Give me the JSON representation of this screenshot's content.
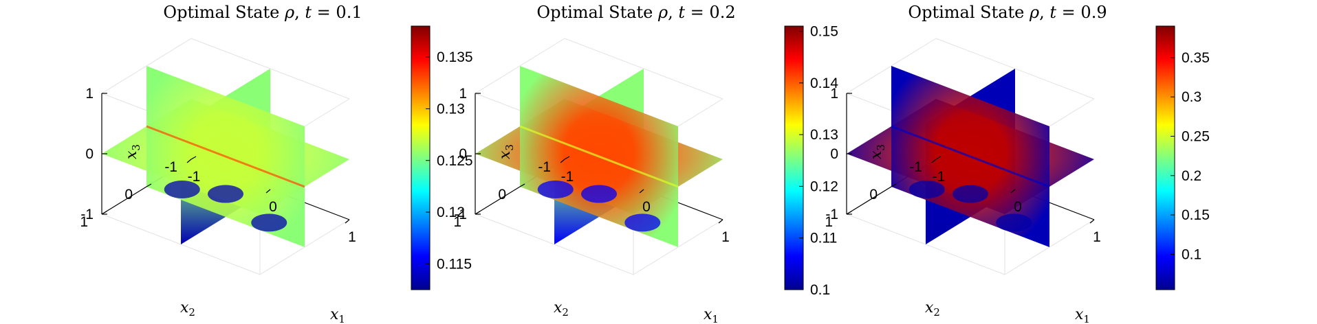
{
  "chart_data": [
    {
      "type": "volumetric-slice",
      "title": "Optimal State ρ, t = 0.1",
      "title_parts": {
        "prefix": "Optimal State ",
        "var": "ρ",
        "sep": ", ",
        "tvar": "t",
        "eq": " = ",
        "tval": "0.1"
      },
      "xlabel": "x1",
      "ylabel": "x2",
      "zlabel": "x3",
      "axis_labels": {
        "x1": {
          "base": "x",
          "sub": "1"
        },
        "x2": {
          "base": "x",
          "sub": "2"
        },
        "x3": {
          "base": "x",
          "sub": "3"
        }
      },
      "x_ticks": [
        "-1",
        "0",
        "1"
      ],
      "y_ticks": [
        "-1",
        "0",
        "1"
      ],
      "z_ticks": [
        "-1",
        "0",
        "1"
      ],
      "colorbar": {
        "min": 0.1125,
        "max": 0.138,
        "ticks": [
          0.115,
          0.12,
          0.125,
          0.13,
          0.135
        ],
        "tick_labels": [
          "0.115",
          "0.12",
          "0.125",
          "0.13",
          "0.135"
        ]
      },
      "pattern": {
        "base": 0.1255,
        "center_value": 0.127,
        "edge_value": 0.133,
        "low_value": 0.1135
      }
    },
    {
      "type": "volumetric-slice",
      "title": "Optimal State ρ, t = 0.2",
      "title_parts": {
        "prefix": "Optimal State ",
        "var": "ρ",
        "sep": ", ",
        "tvar": "t",
        "eq": " = ",
        "tval": "0.2"
      },
      "xlabel": "x1",
      "ylabel": "x2",
      "zlabel": "x3",
      "axis_labels": {
        "x1": {
          "base": "x",
          "sub": "1"
        },
        "x2": {
          "base": "x",
          "sub": "2"
        },
        "x3": {
          "base": "x",
          "sub": "3"
        }
      },
      "x_ticks": [
        "-1",
        "0",
        "1"
      ],
      "y_ticks": [
        "-1",
        "0",
        "1"
      ],
      "z_ticks": [
        "-1",
        "0",
        "1"
      ],
      "colorbar": {
        "min": 0.1,
        "max": 0.151,
        "ticks": [
          0.1,
          0.11,
          0.12,
          0.13,
          0.14,
          0.15
        ],
        "tick_labels": [
          "0.1",
          "0.11",
          "0.12",
          "0.13",
          "0.14",
          "0.15"
        ]
      },
      "pattern": {
        "base": 0.126,
        "center_value": 0.141,
        "edge_value": 0.13,
        "low_value": 0.106
      }
    },
    {
      "type": "volumetric-slice",
      "title": "Optimal State ρ, t = 0.9",
      "title_parts": {
        "prefix": "Optimal State ",
        "var": "ρ",
        "sep": ", ",
        "tvar": "t",
        "eq": " = ",
        "tval": "0.9"
      },
      "xlabel": "x1",
      "ylabel": "x2",
      "zlabel": "x3",
      "axis_labels": {
        "x1": {
          "base": "x",
          "sub": "1"
        },
        "x2": {
          "base": "x",
          "sub": "2"
        },
        "x3": {
          "base": "x",
          "sub": "3"
        }
      },
      "x_ticks": [
        "-1",
        "0",
        "1"
      ],
      "y_ticks": [
        "-1",
        "0",
        "1"
      ],
      "z_ticks": [
        "-1",
        "0",
        "1"
      ],
      "colorbar": {
        "min": 0.055,
        "max": 0.39,
        "ticks": [
          0.1,
          0.15,
          0.2,
          0.25,
          0.3,
          0.35
        ],
        "tick_labels": [
          "0.1",
          "0.15",
          "0.2",
          "0.25",
          "0.3",
          "0.35"
        ]
      },
      "pattern": {
        "base": 0.07,
        "center_value": 0.37,
        "edge_value": 0.075,
        "low_value": 0.065
      }
    }
  ],
  "colormap": [
    "#00008f",
    "#0000ff",
    "#0080ff",
    "#00ffff",
    "#80ff80",
    "#ffff00",
    "#ff8000",
    "#ff0000",
    "#800000"
  ]
}
